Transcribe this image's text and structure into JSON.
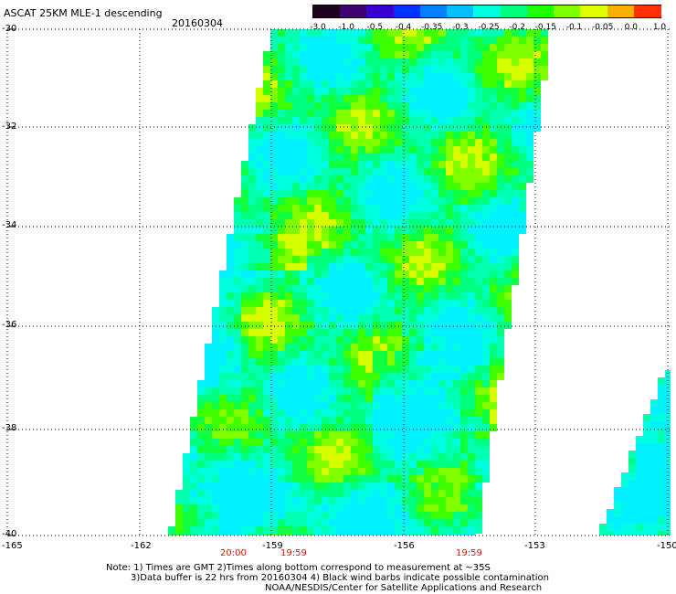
{
  "title": "ASCAT 25KM MLE-1 descending",
  "date": "20160304",
  "colorbar": {
    "labels": [
      "-3.0",
      "-1.0",
      "-0.5",
      "-0.4",
      "-0.35",
      "-0.3",
      "-0.25",
      "-0.2",
      "-0.15",
      "-0.1",
      "-0.05",
      "0.0",
      "1.0"
    ],
    "colors": [
      "#200020",
      "#400070",
      "#3a00d0",
      "#0030ff",
      "#0080ff",
      "#00c0ff",
      "#00ffe0",
      "#00ff80",
      "#20ff00",
      "#80ff00",
      "#e0ff00",
      "#ffb000",
      "#ff3000"
    ]
  },
  "axes": {
    "x_ticks": [
      "-165",
      "-162",
      "-159",
      "-156",
      "-153",
      "-150"
    ],
    "y_ticks": [
      "-30",
      "-32",
      "-34",
      "-36",
      "-38",
      "-40"
    ]
  },
  "times": [
    "20:00",
    "19:59",
    "19:59"
  ],
  "notes": [
    "Note: 1) Times are GMT 2)Times along bottom correspond to measurement at ~35S",
    "3)Data buffer is 22 hrs from 20160304 4) Black wind barbs indicate possible contamination",
    "NOAA/NESDIS/Center for Satellite Applications and Research"
  ]
}
